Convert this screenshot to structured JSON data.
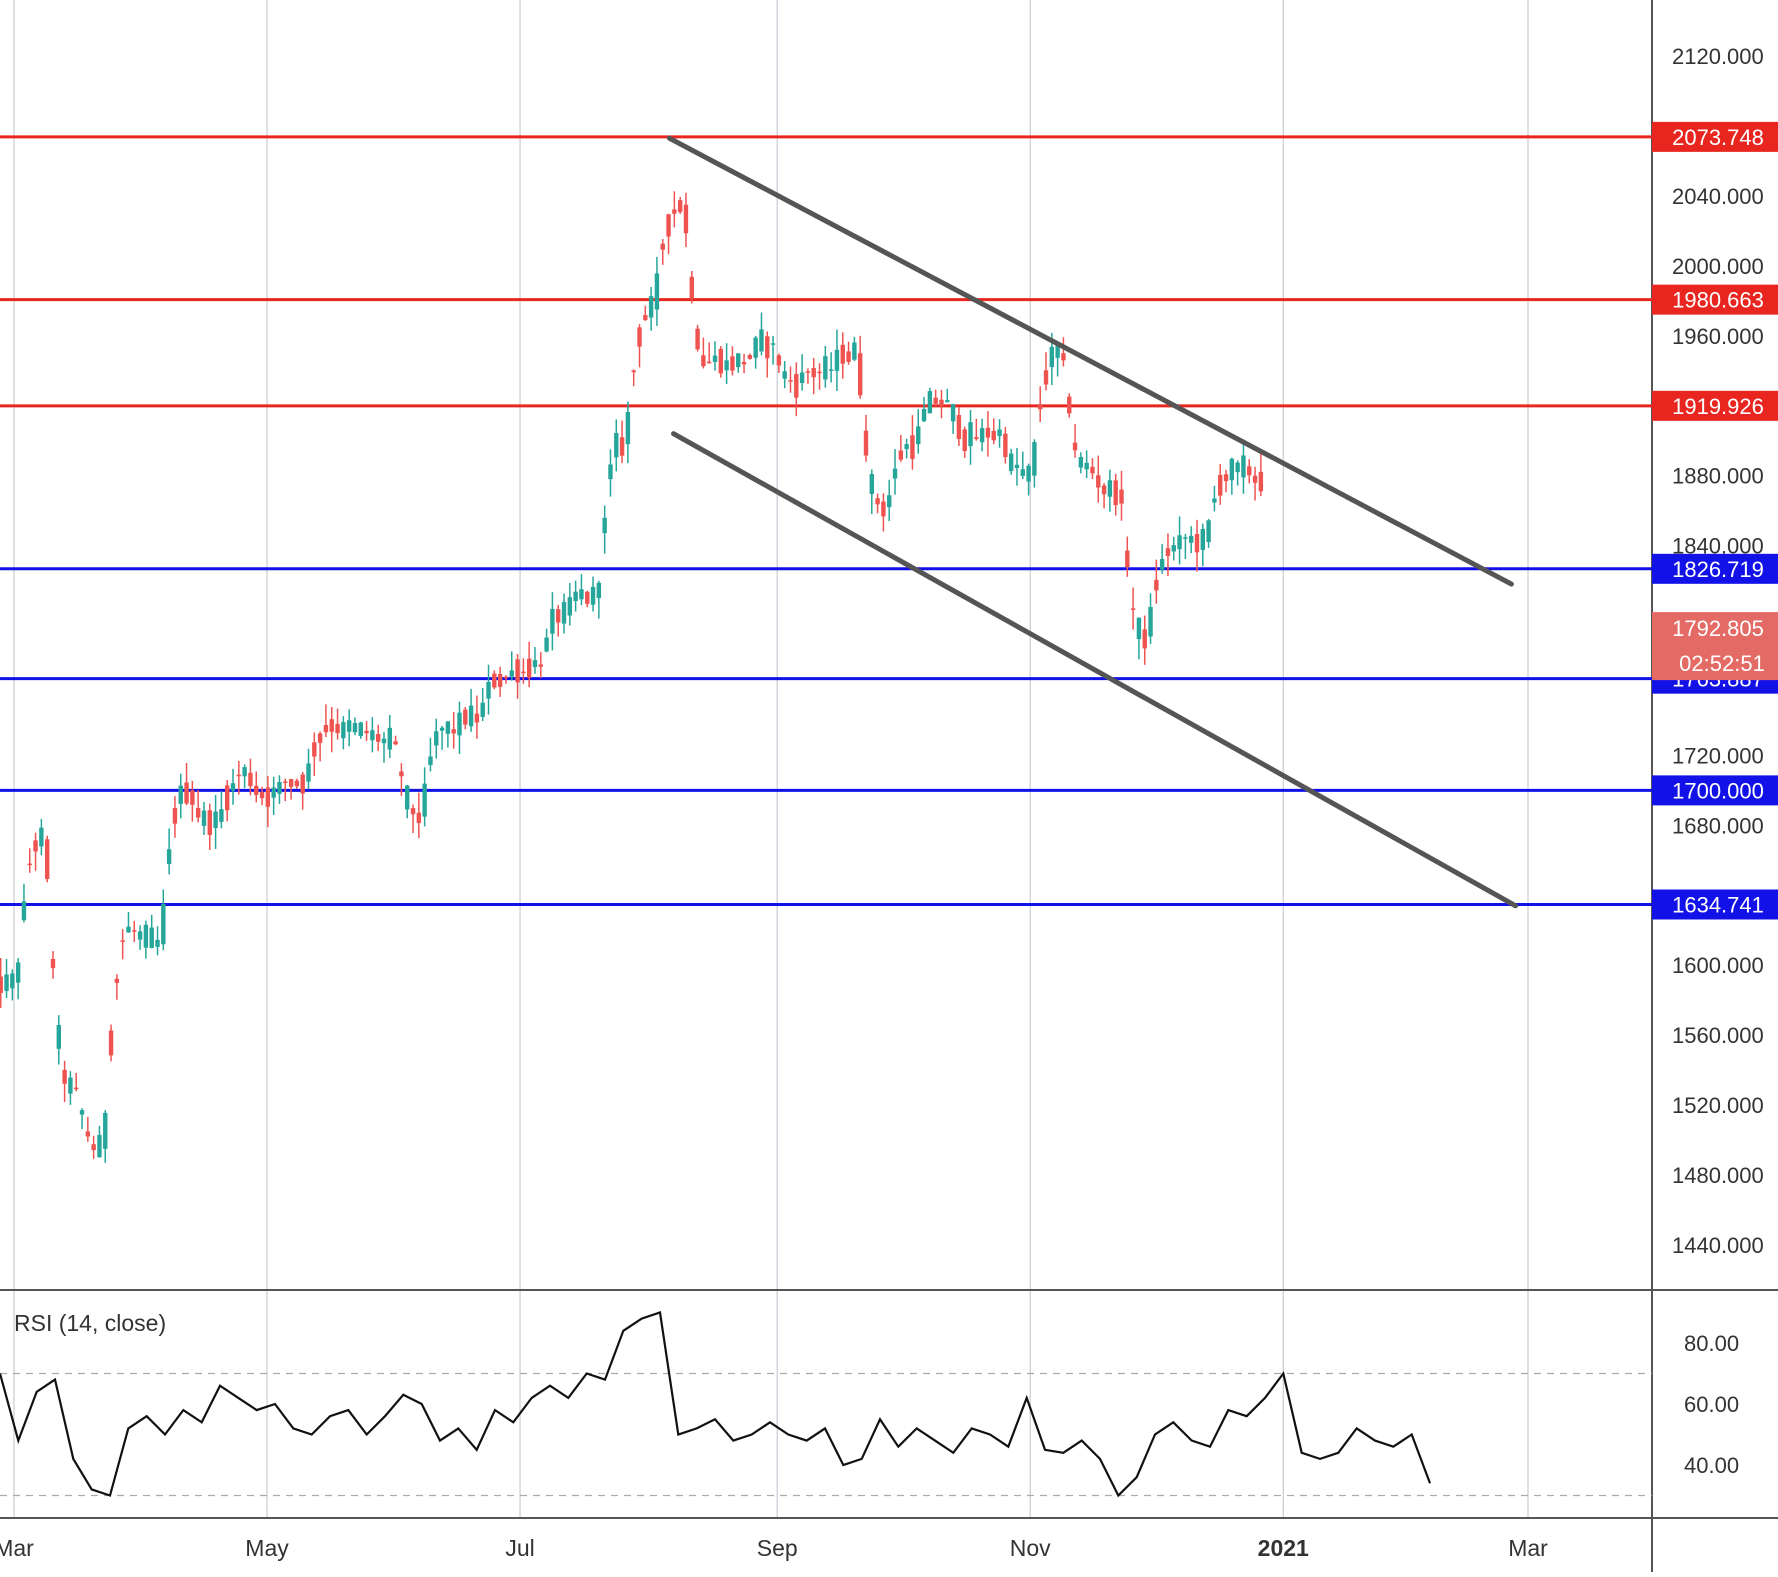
{
  "colors": {
    "up": "#26a69a",
    "down": "#ef5350",
    "resistance": "#e8261f",
    "support": "#1212e8",
    "channel": "#555555",
    "grid": "#c9cbd3",
    "axis_text": "#333333",
    "rsi_line": "#111111"
  },
  "chart_data": [
    {
      "type": "candlestick",
      "title": "",
      "x_ticks": [
        {
          "label": "Mar",
          "date": "2020-03-01"
        },
        {
          "label": "May",
          "date": "2020-05-01"
        },
        {
          "label": "Jul",
          "date": "2020-07-01"
        },
        {
          "label": "Sep",
          "date": "2020-09-01"
        },
        {
          "label": "Nov",
          "date": "2020-11-01"
        },
        {
          "label": "2021",
          "date": "2021-01-01"
        },
        {
          "label": "Mar",
          "date": "2021-03-01"
        }
      ],
      "y_ticks": [
        "2120.000",
        "2040.000",
        "2000.000",
        "1960.000",
        "1880.000",
        "1840.000",
        "1720.000",
        "1680.000",
        "1600.000",
        "1560.000",
        "1520.000",
        "1480.000",
        "1440.000"
      ],
      "ylim": [
        1413,
        2163
      ],
      "horizontal_levels": [
        {
          "value": 2073.748,
          "label": "2073.748",
          "kind": "resistance"
        },
        {
          "value": 1980.663,
          "label": "1980.663",
          "kind": "resistance"
        },
        {
          "value": 1919.926,
          "label": "1919.926",
          "kind": "resistance"
        },
        {
          "value": 1826.719,
          "label": "1826.719",
          "kind": "support"
        },
        {
          "value": 1763.887,
          "label": "1763.887",
          "kind": "support"
        },
        {
          "value": 1700.0,
          "label": "1700.000",
          "kind": "support"
        },
        {
          "value": 1634.741,
          "label": "1634.741",
          "kind": "support"
        }
      ],
      "last_price": {
        "label": "1792.805",
        "value": 1792.805,
        "countdown": "02:52:51"
      },
      "trend_lines": [
        {
          "name": "upper channel",
          "points": [
            [
              "2020-08-06",
              2073
            ],
            [
              "2021-02-25",
              1818
            ]
          ]
        },
        {
          "name": "lower channel",
          "points": [
            [
              "2020-08-07",
              1904
            ],
            [
              "2021-02-26",
              1634
            ]
          ]
        }
      ],
      "series": [
        {
          "x": [
            "2020-02-24",
            "2020-03-02",
            "2020-03-09",
            "2020-03-16",
            "2020-03-23",
            "2020-03-30",
            "2020-04-06",
            "2020-04-13",
            "2020-04-20",
            "2020-04-27",
            "2020-05-04",
            "2020-05-11",
            "2020-05-18",
            "2020-05-25",
            "2020-06-01",
            "2020-06-08",
            "2020-06-15",
            "2020-06-22",
            "2020-06-29",
            "2020-07-06",
            "2020-07-13",
            "2020-07-20",
            "2020-07-27",
            "2020-08-03",
            "2020-08-10",
            "2020-08-17",
            "2020-08-24",
            "2020-08-31",
            "2020-09-07",
            "2020-09-14",
            "2020-09-21",
            "2020-09-28",
            "2020-10-05",
            "2020-10-12",
            "2020-10-19",
            "2020-10-26",
            "2020-11-02",
            "2020-11-09",
            "2020-11-16",
            "2020-11-23",
            "2020-11-30",
            "2020-12-07",
            "2020-12-14",
            "2020-12-21",
            "2020-12-28",
            "2021-01-04",
            "2021-01-11",
            "2021-01-18",
            "2021-01-25",
            "2021-02-01"
          ],
          "close": [
            1590,
            1672,
            1530,
            1495,
            1620,
            1612,
            1700,
            1682,
            1710,
            1698,
            1705,
            1738,
            1734,
            1728,
            1685,
            1735,
            1742,
            1765,
            1772,
            1800,
            1810,
            1898,
            1975,
            2035,
            1945,
            1945,
            1955,
            1933,
            1940,
            1950,
            1862,
            1898,
            1922,
            1902,
            1904,
            1880,
            1950,
            1885,
            1872,
            1788,
            1838,
            1842,
            1882,
            1878,
            1898,
            1850,
            1830,
            1855,
            1850,
            1792.805
          ]
        },
        {
          "name": "RSI (14, close)",
          "ylim": [
            22,
            93
          ],
          "y_ticks": [
            "80.00",
            "60.00",
            "40.00"
          ],
          "bands": [
            70,
            30
          ],
          "values": [
            70,
            48,
            64,
            68,
            42,
            32,
            30,
            52,
            56,
            50,
            58,
            54,
            66,
            62,
            58,
            60,
            52,
            50,
            56,
            58,
            50,
            56,
            63,
            60,
            48,
            52,
            45,
            58,
            54,
            62,
            66,
            62,
            70,
            68,
            84,
            88,
            90,
            50,
            52,
            55,
            48,
            50,
            54,
            50,
            48,
            52,
            40,
            42,
            55,
            46,
            52,
            48,
            44,
            52,
            50,
            46,
            62,
            45,
            44,
            48,
            42,
            30,
            36,
            50,
            54,
            48,
            46,
            58,
            56,
            62,
            70,
            44,
            42,
            44,
            52,
            48,
            46,
            50,
            34
          ]
        }
      ]
    }
  ]
}
